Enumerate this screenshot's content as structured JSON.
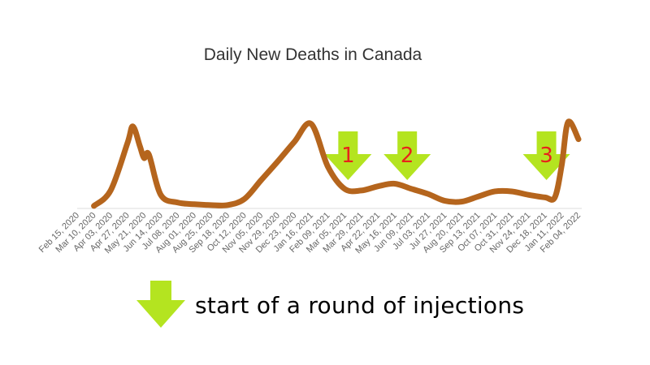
{
  "chart_data": {
    "type": "line",
    "title": "Daily New Deaths in Canada",
    "xlabel": "",
    "ylabel": "",
    "x_ticks": [
      "Feb 15, 2020",
      "Mar 10, 2020",
      "Apr 03, 2020",
      "Apr 27, 2020",
      "May 21, 2020",
      "Jun 14, 2020",
      "Jul 08, 2020",
      "Aug 01, 2020",
      "Aug 25, 2020",
      "Sep 18, 2020",
      "Oct 12, 2020",
      "Nov 05, 2020",
      "Nov 29, 2020",
      "Dec 23, 2020",
      "Jan 16, 2021",
      "Feb 09, 2021",
      "Mar 05, 2021",
      "Mar 29, 2021",
      "Apr 22, 2021",
      "May 16, 2021",
      "Jun 09, 2021",
      "Jul 03, 2021",
      "Jul 27, 2021",
      "Aug 20, 2021",
      "Sep 13, 2021",
      "Oct 07, 2021",
      "Oct 31, 2021",
      "Nov 24, 2021",
      "Dec 18, 2021",
      "Jan 11, 2022",
      "Feb 04, 2022"
    ],
    "series": [
      {
        "points": [
          [
            "Mar 10, 2020",
            2
          ],
          [
            "Apr 03, 2020",
            20
          ],
          [
            "Apr 27, 2020",
            75
          ],
          [
            "May 05, 2020",
            95
          ],
          [
            "May 15, 2020",
            72
          ],
          [
            "May 21, 2020",
            58
          ],
          [
            "May 28, 2020",
            62
          ],
          [
            "Jun 14, 2020",
            15
          ],
          [
            "Jul 08, 2020",
            6
          ],
          [
            "Aug 01, 2020",
            4
          ],
          [
            "Aug 25, 2020",
            3
          ],
          [
            "Sep 18, 2020",
            3
          ],
          [
            "Oct 12, 2020",
            10
          ],
          [
            "Nov 05, 2020",
            32
          ],
          [
            "Nov 29, 2020",
            54
          ],
          [
            "Dec 23, 2020",
            77
          ],
          [
            "Jan 16, 2021",
            98
          ],
          [
            "Feb 09, 2021",
            48
          ],
          [
            "Mar 05, 2021",
            22
          ],
          [
            "Mar 29, 2021",
            20
          ],
          [
            "Apr 22, 2021",
            25
          ],
          [
            "May 16, 2021",
            28
          ],
          [
            "Jun 09, 2021",
            22
          ],
          [
            "Jul 03, 2021",
            16
          ],
          [
            "Jul 27, 2021",
            8
          ],
          [
            "Aug 20, 2021",
            7
          ],
          [
            "Sep 13, 2021",
            13
          ],
          [
            "Oct 07, 2021",
            19
          ],
          [
            "Oct 31, 2021",
            19
          ],
          [
            "Nov 24, 2021",
            15
          ],
          [
            "Dec 18, 2021",
            12
          ],
          [
            "Jan 01, 2022",
            12
          ],
          [
            "Jan 11, 2022",
            50
          ],
          [
            "Jan 20, 2022",
            100
          ],
          [
            "Feb 04, 2022",
            80
          ]
        ]
      }
    ],
    "ylim": [
      0,
      110
    ],
    "grid": false,
    "line_color": "#b5651d",
    "markers": [
      {
        "label": "1",
        "x": "Mar 10, 2021"
      },
      {
        "label": "2",
        "x": "Jun 03, 2021"
      },
      {
        "label": "3",
        "x": "Dec 20, 2021"
      }
    ],
    "marker_color": "#b4e420",
    "marker_label_color": "#e8231b"
  },
  "legend": {
    "text": "start of a round of injections",
    "arrow_icon": "down-arrow-icon"
  }
}
